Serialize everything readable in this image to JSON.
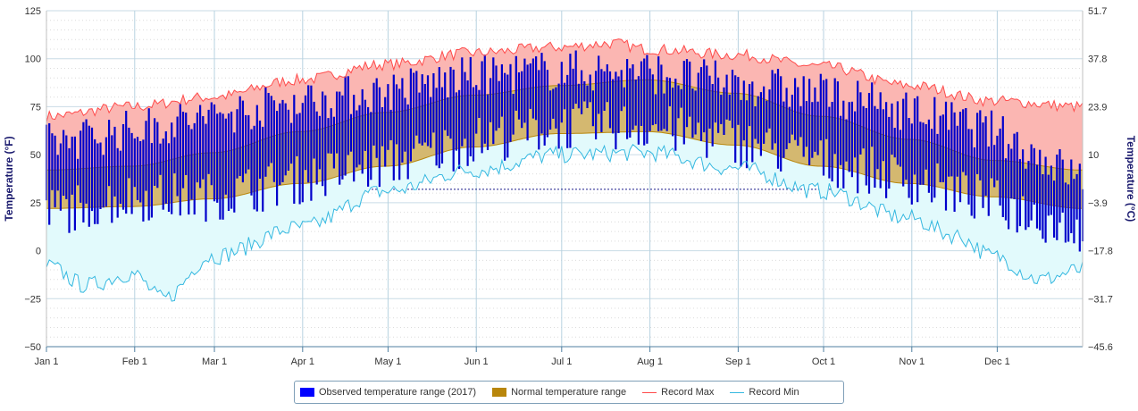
{
  "chart_data": {
    "type": "area",
    "x_categories": [
      "Jan 1",
      "Feb 1",
      "Mar 1",
      "Apr 1",
      "May 1",
      "Jun 1",
      "Jul 1",
      "Aug 1",
      "Sep 1",
      "Oct 1",
      "Nov 1",
      "Dec 1"
    ],
    "y_left": {
      "label": "Temperature (°F)",
      "ylim": [
        -50,
        125
      ],
      "ticks": [
        "125",
        "100",
        "75",
        "50",
        "25",
        "0",
        "−25",
        "−50"
      ]
    },
    "y_right": {
      "label": "Temperature (°C)",
      "ticks": [
        "51.7",
        "37.8",
        "23.9",
        "10",
        "−3.9",
        "−17.8",
        "−31.7",
        "−45.6"
      ]
    },
    "freezing_line_f": 32,
    "series": [
      {
        "name": "Observed temperature range (2017)",
        "color": "#0000cc"
      },
      {
        "name": "Normal temperature range",
        "color": "#b8860b",
        "fill": "#d4b870"
      },
      {
        "name": "Record Max",
        "color": "#ff4a4a",
        "fill": "#fbb6b2"
      },
      {
        "name": "Record Min",
        "color": "#35b8e0",
        "fill": "#e2fafc"
      }
    ],
    "normal_low_anchor": [
      [
        1,
        22
      ],
      [
        31,
        23
      ],
      [
        59,
        27
      ],
      [
        90,
        35
      ],
      [
        120,
        44
      ],
      [
        151,
        54
      ],
      [
        181,
        61
      ],
      [
        212,
        62
      ],
      [
        243,
        55
      ],
      [
        273,
        44
      ],
      [
        304,
        35
      ],
      [
        334,
        28
      ],
      [
        365,
        22
      ]
    ],
    "normal_high_anchor": [
      [
        1,
        42
      ],
      [
        31,
        44
      ],
      [
        59,
        51
      ],
      [
        90,
        62
      ],
      [
        120,
        72
      ],
      [
        151,
        81
      ],
      [
        181,
        86
      ],
      [
        212,
        89
      ],
      [
        243,
        82
      ],
      [
        273,
        70
      ],
      [
        304,
        58
      ],
      [
        334,
        47
      ],
      [
        365,
        42
      ]
    ],
    "record_max_anchor": [
      [
        1,
        70
      ],
      [
        31,
        75
      ],
      [
        59,
        80
      ],
      [
        90,
        89
      ],
      [
        120,
        97
      ],
      [
        151,
        103
      ],
      [
        181,
        106
      ],
      [
        200,
        108
      ],
      [
        212,
        105
      ],
      [
        243,
        102
      ],
      [
        273,
        96
      ],
      [
        304,
        86
      ],
      [
        334,
        78
      ],
      [
        365,
        75
      ]
    ],
    "record_min_anchor": [
      [
        1,
        -8
      ],
      [
        15,
        -18
      ],
      [
        31,
        -12
      ],
      [
        42,
        -25
      ],
      [
        59,
        -3
      ],
      [
        90,
        12
      ],
      [
        120,
        31
      ],
      [
        151,
        42
      ],
      [
        181,
        50
      ],
      [
        212,
        51
      ],
      [
        243,
        43
      ],
      [
        273,
        31
      ],
      [
        304,
        17
      ],
      [
        320,
        8
      ],
      [
        334,
        -3
      ],
      [
        350,
        -15
      ],
      [
        365,
        -10
      ]
    ],
    "observed_anchor": [
      [
        1,
        20,
        56
      ],
      [
        31,
        28,
        63
      ],
      [
        59,
        28,
        70
      ],
      [
        90,
        37,
        78
      ],
      [
        120,
        45,
        83
      ],
      [
        151,
        57,
        91
      ],
      [
        181,
        65,
        94
      ],
      [
        212,
        65,
        93
      ],
      [
        243,
        57,
        87
      ],
      [
        273,
        47,
        82
      ],
      [
        304,
        37,
        73
      ],
      [
        334,
        25,
        62
      ],
      [
        365,
        10,
        37
      ]
    ]
  }
}
